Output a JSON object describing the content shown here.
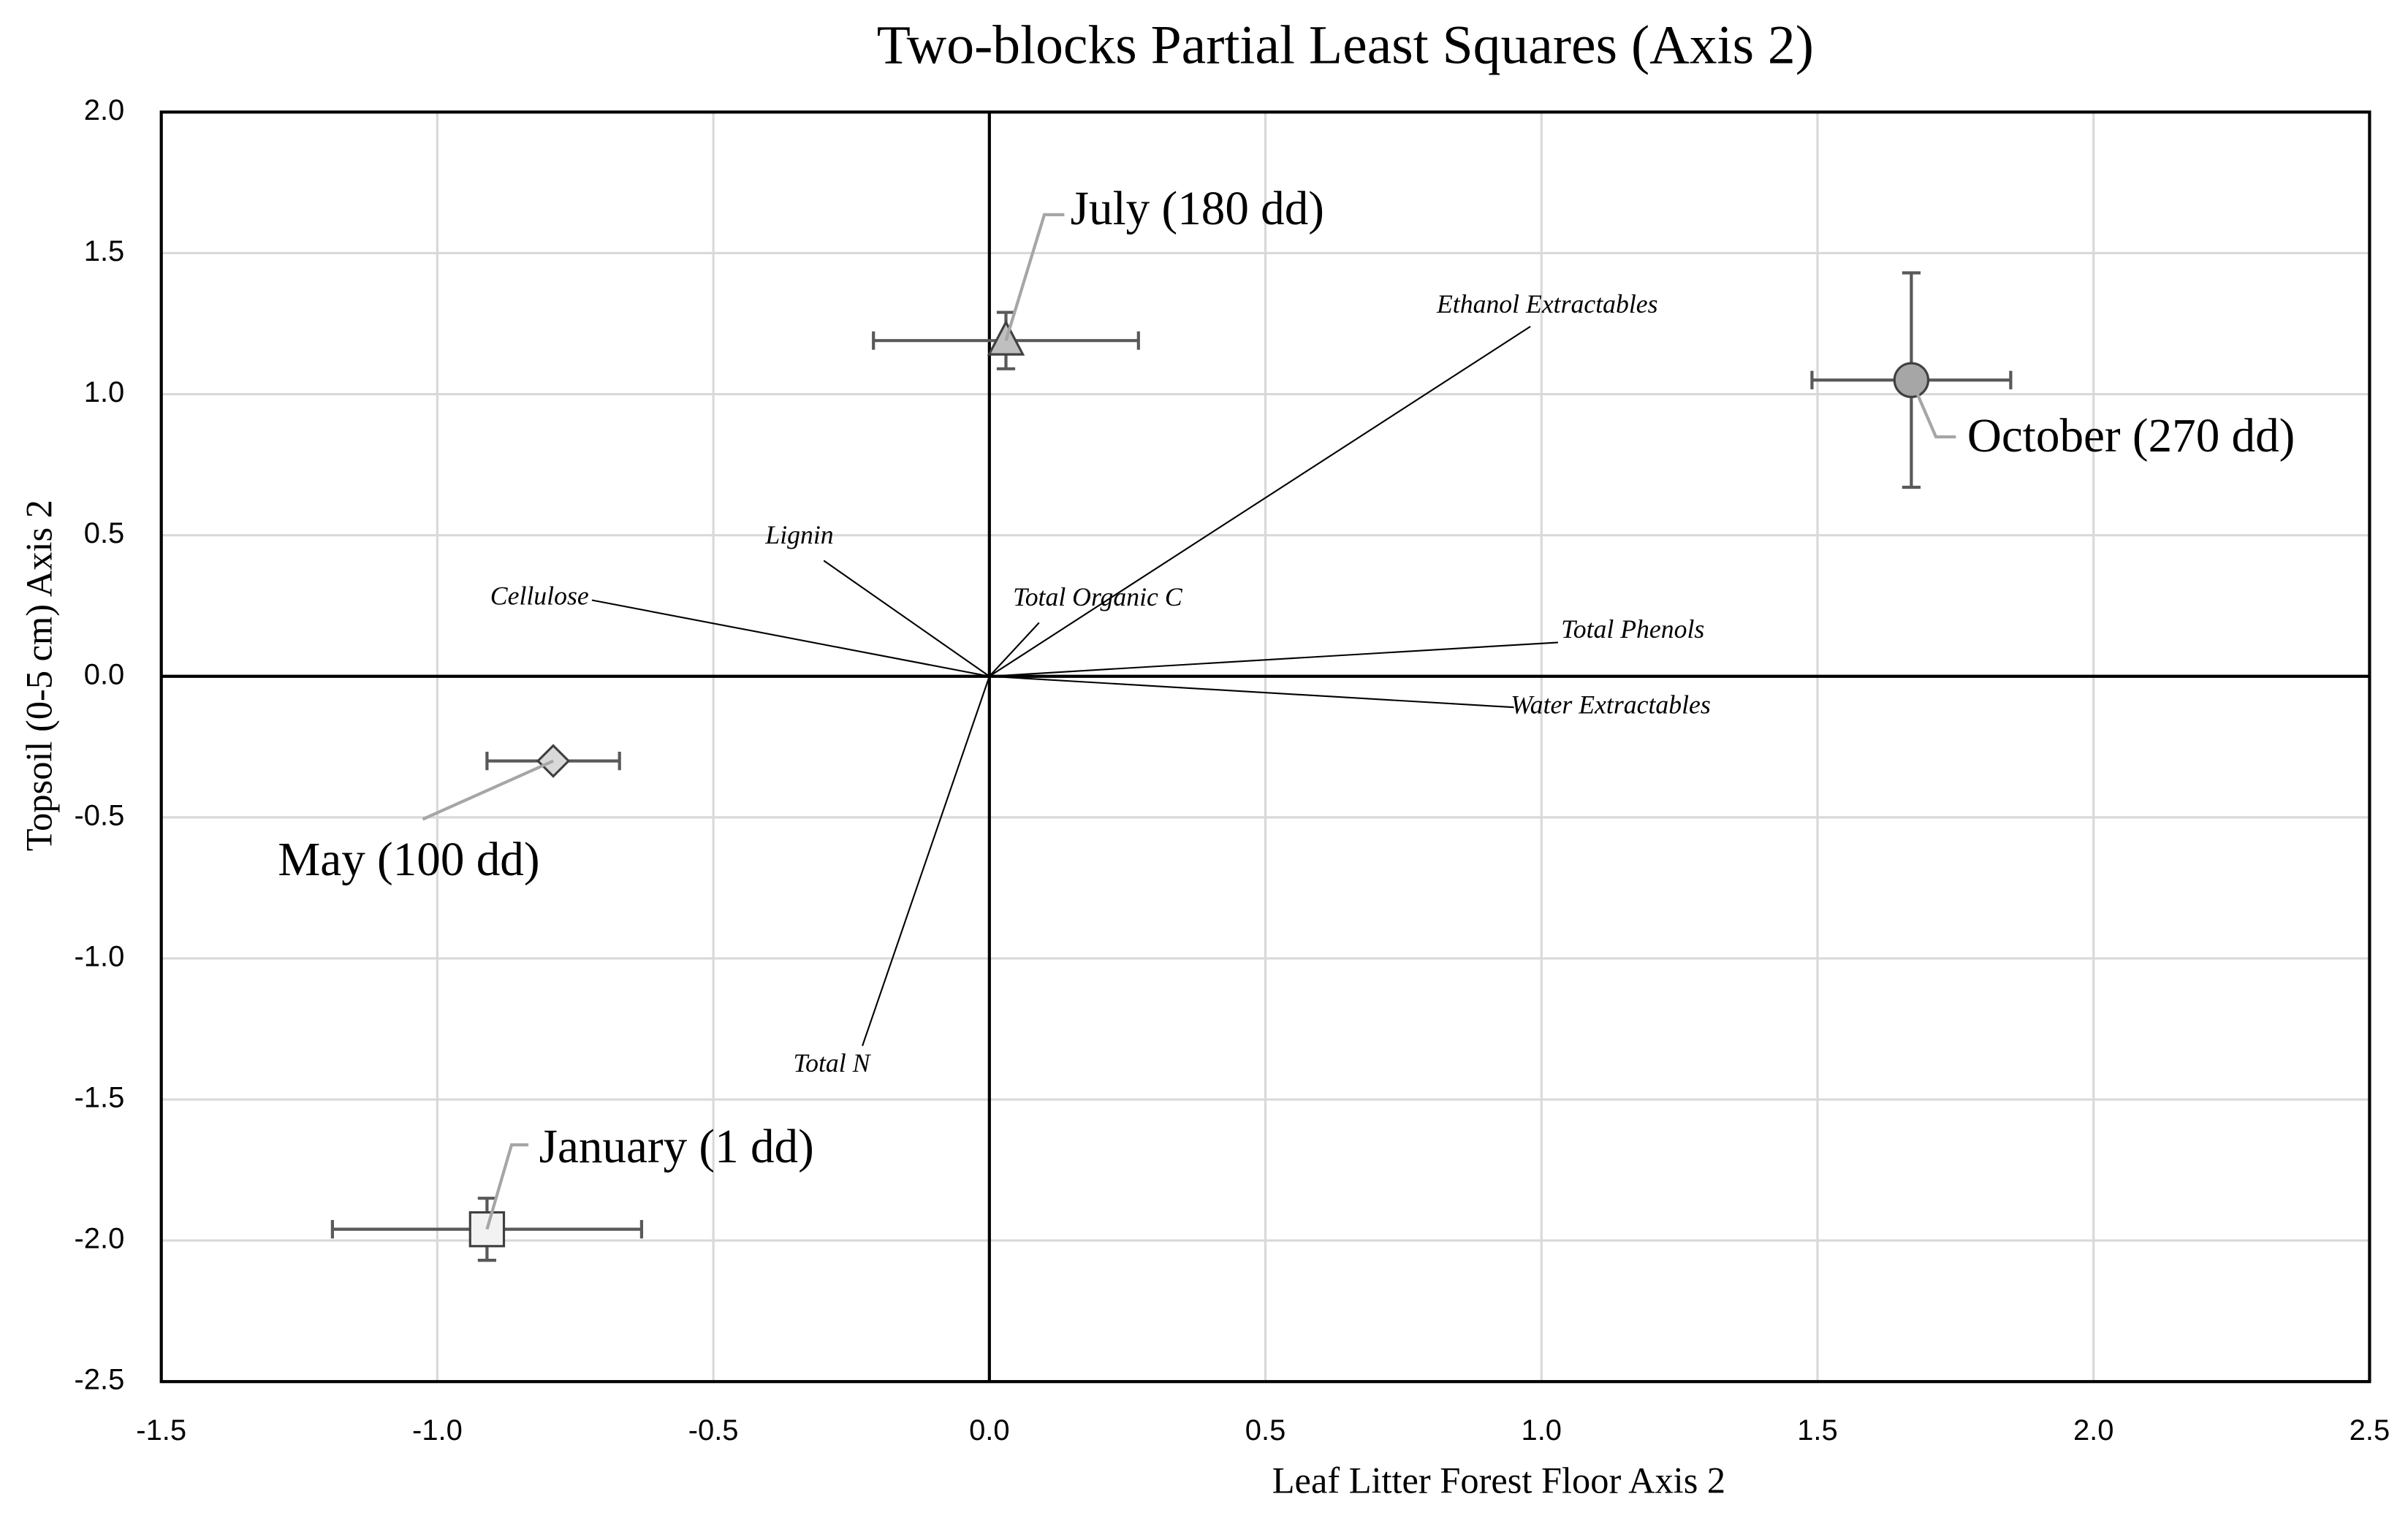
{
  "chart_data": {
    "type": "scatter",
    "title": "Two-blocks Partial Least Squares (Axis 2)",
    "x_label": "Leaf Litter Forest Floor Axis 2",
    "y_label": "Topsoil (0-5 cm) Axis 2",
    "xlim": [
      -1.5,
      2.5
    ],
    "ylim": [
      -2.5,
      2.0
    ],
    "xticks": [
      -1.5,
      {
        "value": -1,
        "label": "-1.0"
      },
      -0.5,
      {
        "value": 0,
        "label": "0.0"
      },
      0.5,
      {
        "value": 1,
        "label": "1.0"
      },
      1.5,
      {
        "value": 2,
        "label": "2.0"
      },
      2.5
    ],
    "yticks": [
      -2.5,
      {
        "value": -2,
        "label": "-2.0"
      },
      -1.5,
      {
        "value": -1,
        "label": "-1.0"
      },
      -0.5,
      {
        "value": 0,
        "label": "0.0"
      },
      0.5,
      {
        "value": 1,
        "label": "1.0"
      },
      1.5,
      {
        "value": 2,
        "label": "2.0"
      }
    ],
    "grid": true,
    "series": [
      {
        "name": "January (1 dd)",
        "marker": "square",
        "color": "#f2f2f2",
        "x": [
          -0.91
        ],
        "values": [
          -1.96
        ],
        "x_error": [
          0.28
        ],
        "y_error": [
          0.11
        ]
      },
      {
        "name": "May (100 dd)",
        "marker": "diamond",
        "color": "#d9d9d9",
        "x": [
          -0.79
        ],
        "values": [
          -0.3
        ],
        "x_error": [
          0.12
        ]
      },
      {
        "name": "July (180 dd)",
        "marker": "triangle",
        "color": "#bfbfbf",
        "x": [
          0.03
        ],
        "values": [
          1.19
        ],
        "x_error": [
          0.24
        ],
        "y_error": [
          0.1
        ]
      },
      {
        "name": "October (270 dd)",
        "marker": "circle",
        "color": "#a6a6a6",
        "x": [
          1.67
        ],
        "values": [
          1.05
        ],
        "x_error": [
          0.18
        ],
        "y_error": [
          0.38
        ]
      }
    ],
    "vectors": [
      {
        "name": "Ethanol Extractables",
        "x": 0.98,
        "y": 1.24
      },
      {
        "name": "Lignin",
        "x": -0.3,
        "y": 0.41
      },
      {
        "name": "Cellulose",
        "x": -0.72,
        "y": 0.27
      },
      {
        "name": "Total Organic C",
        "x": 0.09,
        "y": 0.19
      },
      {
        "name": "Total Phenols",
        "x": 1.03,
        "y": 0.12
      },
      {
        "name": "Water Extractables",
        "x": 0.95,
        "y": -0.11
      },
      {
        "name": "Total N",
        "x": -0.23,
        "y": -1.31
      }
    ]
  }
}
